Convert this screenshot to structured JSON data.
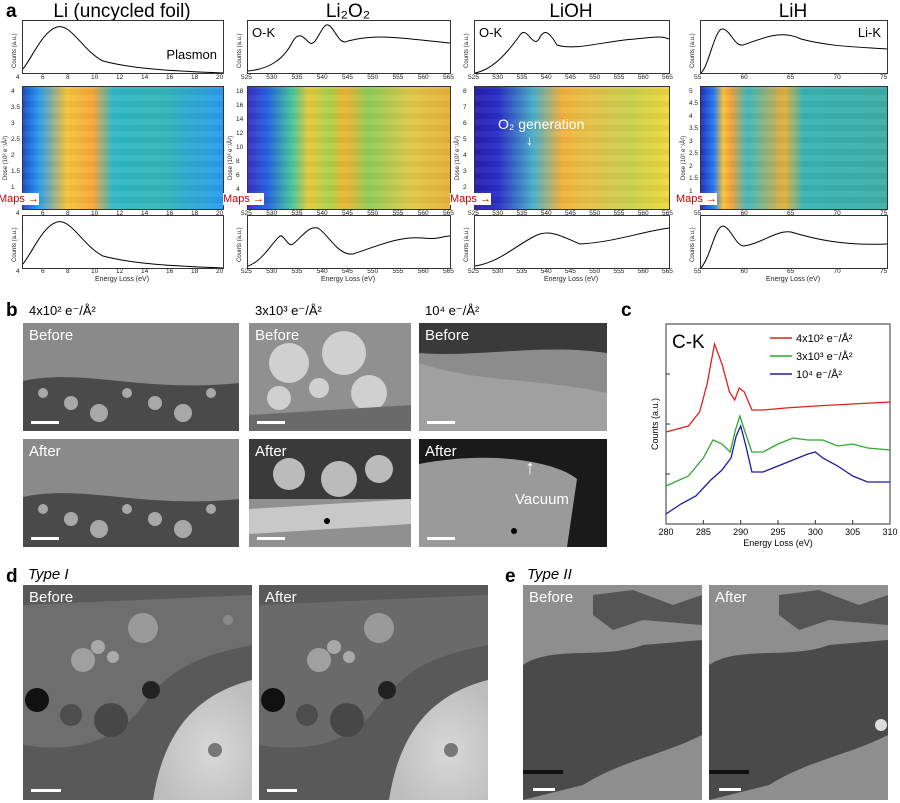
{
  "panel_a": {
    "letter": "a",
    "columns": [
      {
        "title": "Li (uncycled foil)",
        "top_label": "Plasmon",
        "xticks": [
          "4",
          "6",
          "8",
          "10",
          "12",
          "14",
          "16",
          "18",
          "20"
        ],
        "heat_yticks": [
          "4",
          "3.5",
          "3",
          "2.5",
          "2",
          "1.5",
          "1",
          "0.5"
        ],
        "heat_ylabel": "Dose (10² e⁻/Å²)",
        "counts_label": "Counts (a.u.)",
        "energy_label": "Energy Loss (eV)",
        "maps_label": "Maps"
      },
      {
        "title": "Li₂O₂",
        "top_label": "O-K",
        "xticks": [
          "525",
          "530",
          "535",
          "540",
          "545",
          "550",
          "555",
          "560",
          "565"
        ],
        "heat_yticks": [
          "18",
          "16",
          "14",
          "12",
          "10",
          "8",
          "6",
          "4",
          "2"
        ],
        "heat_ylabel": "Dose (10³ e⁻/Å²)",
        "counts_label": "Counts (a.u.)",
        "energy_label": "Energy Loss (eV)",
        "maps_label": "Maps"
      },
      {
        "title": "LiOH",
        "top_label": "O-K",
        "annotation": "O₂ generation",
        "xticks": [
          "525",
          "530",
          "535",
          "540",
          "545",
          "550",
          "555",
          "560",
          "565"
        ],
        "heat_yticks": [
          "8",
          "7",
          "6",
          "5",
          "4",
          "3",
          "2",
          "1"
        ],
        "heat_ylabel": "Dose (10³ e⁻/Å²)",
        "counts_label": "Counts (a.u.)",
        "energy_label": "Energy Loss (eV)",
        "maps_label": "Maps"
      },
      {
        "title": "LiH",
        "top_label": "Li-K",
        "xticks": [
          "55",
          "60",
          "65",
          "70",
          "75"
        ],
        "heat_yticks": [
          "5",
          "4.5",
          "4",
          "3.5",
          "3",
          "2.5",
          "2",
          "1.5",
          "1",
          "0.5"
        ],
        "heat_ylabel": "Dose (10² e⁻/Å²)",
        "counts_label": "Counts (a.u.)",
        "energy_label": "Energy Loss (eV)",
        "maps_label": "Maps"
      }
    ]
  },
  "panel_b": {
    "letter": "b",
    "doses": [
      "4x10² e⁻/Å²",
      "3x10³ e⁻/Å²",
      "10⁴ e⁻/Å²"
    ],
    "before_label": "Before",
    "after_label": "After",
    "vacuum_label": "Vacuum"
  },
  "panel_c": {
    "letter": "c",
    "edge_label": "C-K",
    "ylabel": "Counts (a.u.)",
    "colors": {
      "red": "#e0201b",
      "green": "#2fa82f",
      "blue": "#1b1ba8"
    },
    "chart_data": {
      "type": "line",
      "xlabel": "Energy Loss (eV)",
      "ylabel": "Counts (a.u.)",
      "xlim": [
        280,
        310
      ],
      "xticks": [
        "280",
        "285",
        "290",
        "295",
        "300",
        "305",
        "310"
      ],
      "legend_position": "top-right",
      "series": [
        {
          "name": "4x10² e⁻/Å²",
          "x": [
            280,
            283,
            284.5,
            285.5,
            286.5,
            287.5,
            288.5,
            289.2,
            289.8,
            290.5,
            291.5,
            293,
            296,
            300,
            305,
            310
          ],
          "y": [
            0.46,
            0.49,
            0.56,
            0.7,
            0.9,
            0.8,
            0.66,
            0.62,
            0.68,
            0.66,
            0.57,
            0.57,
            0.58,
            0.59,
            0.6,
            0.61
          ]
        },
        {
          "name": "3x10³ e⁻/Å²",
          "x": [
            280,
            283,
            285,
            286.3,
            287.5,
            288.6,
            289.3,
            289.9,
            290.5,
            291.5,
            293,
            295,
            297,
            299,
            301,
            303,
            305,
            307,
            310
          ],
          "y": [
            0.19,
            0.24,
            0.33,
            0.42,
            0.4,
            0.36,
            0.47,
            0.54,
            0.47,
            0.36,
            0.36,
            0.4,
            0.43,
            0.42,
            0.42,
            0.39,
            0.4,
            0.38,
            0.37
          ]
        },
        {
          "name": "10⁴ e⁻/Å²",
          "x": [
            280,
            282,
            284,
            286,
            287.5,
            288.7,
            289.4,
            290,
            290.7,
            291.5,
            293,
            295,
            297,
            299,
            300,
            301,
            303,
            305,
            307,
            310
          ],
          "y": [
            0.05,
            0.1,
            0.14,
            0.22,
            0.27,
            0.33,
            0.44,
            0.49,
            0.39,
            0.26,
            0.26,
            0.29,
            0.32,
            0.35,
            0.36,
            0.33,
            0.29,
            0.24,
            0.21,
            0.21
          ]
        }
      ]
    }
  },
  "panel_d": {
    "letter": "d",
    "type_label": "Type I",
    "before_label": "Before",
    "after_label": "After"
  },
  "panel_e": {
    "letter": "e",
    "type_label": "Type II",
    "before_label": "Before",
    "after_label": "After"
  }
}
